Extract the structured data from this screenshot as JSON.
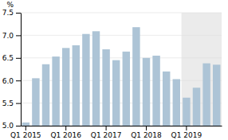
{
  "chart_data": {
    "type": "bar",
    "categories": [
      "Q1 2015",
      null,
      null,
      null,
      "Q1 2016",
      null,
      null,
      null,
      "Q1 2017",
      null,
      null,
      null,
      "Q1 2018",
      null,
      null,
      null,
      "Q1 2019",
      null,
      null,
      null
    ],
    "values": [
      5.07,
      6.05,
      6.36,
      6.53,
      6.72,
      6.78,
      7.03,
      7.09,
      6.69,
      6.45,
      6.64,
      7.18,
      6.5,
      6.55,
      6.2,
      6.03,
      5.62,
      5.84,
      6.38,
      6.35
    ],
    "color": "#adc4d6",
    "ylim": [
      5.0,
      7.5
    ],
    "yticks": [
      {
        "value": 5.0,
        "label": "5.0"
      },
      5.5,
      {
        "value": 6.0,
        "label": "6.0"
      },
      6.5,
      {
        "value": 7.0,
        "label": "7.0"
      },
      7.5
    ],
    "ylabel": "%",
    "grid": true,
    "highlight": {
      "from": "Q1 2019",
      "color": "#ebebeb"
    }
  }
}
